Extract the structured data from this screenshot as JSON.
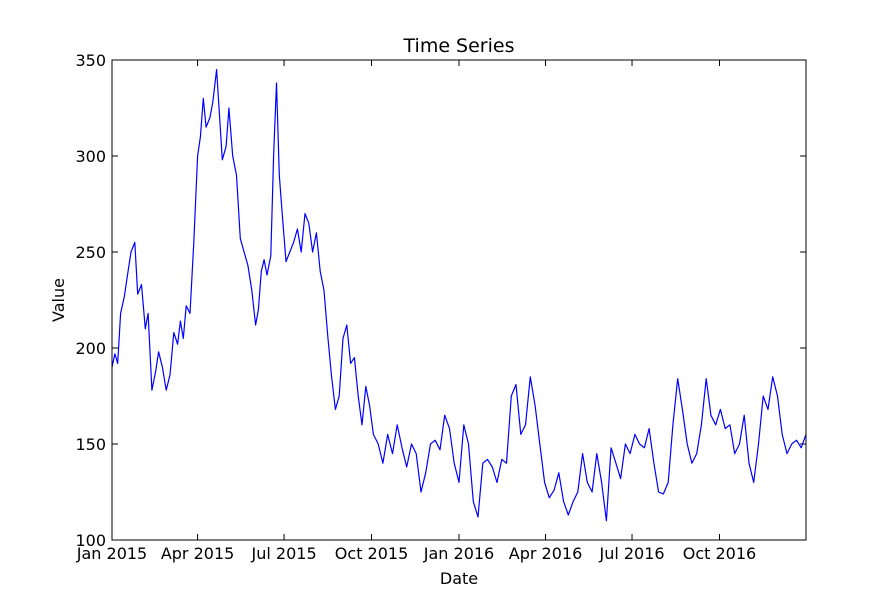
{
  "chart_data": {
    "type": "line",
    "title": "Time Series",
    "xlabel": "Date",
    "ylabel": "Value",
    "ylim": [
      100,
      350
    ],
    "xlim": [
      "2015-01-01",
      "2016-12-31"
    ],
    "yticks": [
      100,
      150,
      200,
      250,
      300,
      350
    ],
    "yticklabels": [
      "100",
      "150",
      "200",
      "250",
      "300",
      "350"
    ],
    "xticks": [
      "2015-01-01",
      "2015-04-01",
      "2015-07-01",
      "2015-10-01",
      "2016-01-01",
      "2016-04-01",
      "2016-07-01",
      "2016-10-01"
    ],
    "xticklabels": [
      "Jan 2015",
      "Apr 2015",
      "Jul 2015",
      "Oct 2015",
      "Jan 2016",
      "Apr 2016",
      "Jul 2016",
      "Oct 2016"
    ],
    "grid": false,
    "legend": false,
    "series": [
      {
        "color": "#0000ff",
        "x": [
          "2015-01-01",
          "2015-01-04",
          "2015-01-07",
          "2015-01-10",
          "2015-01-14",
          "2015-01-17",
          "2015-01-21",
          "2015-01-25",
          "2015-01-28",
          "2015-02-01",
          "2015-02-05",
          "2015-02-08",
          "2015-02-12",
          "2015-02-16",
          "2015-02-19",
          "2015-02-23",
          "2015-02-27",
          "2015-03-03",
          "2015-03-07",
          "2015-03-11",
          "2015-03-14",
          "2015-03-17",
          "2015-03-20",
          "2015-03-24",
          "2015-03-28",
          "2015-04-01",
          "2015-04-04",
          "2015-04-07",
          "2015-04-10",
          "2015-04-14",
          "2015-04-17",
          "2015-04-21",
          "2015-04-24",
          "2015-04-27",
          "2015-05-01",
          "2015-05-04",
          "2015-05-08",
          "2015-05-12",
          "2015-05-16",
          "2015-05-20",
          "2015-05-24",
          "2015-05-28",
          "2015-06-01",
          "2015-06-04",
          "2015-06-07",
          "2015-06-10",
          "2015-06-13",
          "2015-06-17",
          "2015-06-20",
          "2015-06-23",
          "2015-06-26",
          "2015-06-29",
          "2015-07-03",
          "2015-07-07",
          "2015-07-11",
          "2015-07-15",
          "2015-07-19",
          "2015-07-23",
          "2015-07-27",
          "2015-07-31",
          "2015-08-04",
          "2015-08-08",
          "2015-08-12",
          "2015-08-16",
          "2015-08-20",
          "2015-08-24",
          "2015-08-28",
          "2015-09-01",
          "2015-09-05",
          "2015-09-09",
          "2015-09-13",
          "2015-09-17",
          "2015-09-21",
          "2015-09-25",
          "2015-09-29",
          "2015-10-03",
          "2015-10-08",
          "2015-10-13",
          "2015-10-18",
          "2015-10-23",
          "2015-10-28",
          "2015-11-02",
          "2015-11-07",
          "2015-11-12",
          "2015-11-17",
          "2015-11-22",
          "2015-11-27",
          "2015-12-02",
          "2015-12-07",
          "2015-12-12",
          "2015-12-17",
          "2015-12-22",
          "2015-12-27",
          "2016-01-01",
          "2016-01-06",
          "2016-01-11",
          "2016-01-16",
          "2016-01-21",
          "2016-01-26",
          "2016-01-31",
          "2016-02-05",
          "2016-02-10",
          "2016-02-15",
          "2016-02-20",
          "2016-02-25",
          "2016-03-01",
          "2016-03-06",
          "2016-03-11",
          "2016-03-16",
          "2016-03-21",
          "2016-03-26",
          "2016-03-31",
          "2016-04-05",
          "2016-04-10",
          "2016-04-15",
          "2016-04-20",
          "2016-04-25",
          "2016-04-30",
          "2016-05-05",
          "2016-05-10",
          "2016-05-15",
          "2016-05-20",
          "2016-05-25",
          "2016-05-30",
          "2016-06-04",
          "2016-06-09",
          "2016-06-14",
          "2016-06-19",
          "2016-06-24",
          "2016-06-29",
          "2016-07-04",
          "2016-07-09",
          "2016-07-14",
          "2016-07-19",
          "2016-07-24",
          "2016-07-29",
          "2016-08-03",
          "2016-08-08",
          "2016-08-13",
          "2016-08-18",
          "2016-08-23",
          "2016-08-28",
          "2016-09-02",
          "2016-09-07",
          "2016-09-12",
          "2016-09-17",
          "2016-09-22",
          "2016-09-27",
          "2016-10-02",
          "2016-10-07",
          "2016-10-12",
          "2016-10-17",
          "2016-10-22",
          "2016-10-27",
          "2016-11-01",
          "2016-11-06",
          "2016-11-11",
          "2016-11-16",
          "2016-11-21",
          "2016-11-26",
          "2016-12-01",
          "2016-12-06",
          "2016-12-11",
          "2016-12-16",
          "2016-12-21",
          "2016-12-26",
          "2016-12-31"
        ],
        "y": [
          190,
          197,
          192,
          218,
          227,
          237,
          250,
          255,
          228,
          233,
          210,
          218,
          178,
          188,
          198,
          190,
          178,
          186,
          208,
          202,
          214,
          205,
          222,
          218,
          255,
          300,
          310,
          330,
          315,
          320,
          328,
          345,
          322,
          298,
          305,
          325,
          300,
          290,
          257,
          250,
          243,
          230,
          212,
          220,
          240,
          246,
          238,
          248,
          300,
          338,
          290,
          270,
          245,
          250,
          255,
          262,
          250,
          270,
          265,
          250,
          260,
          240,
          230,
          206,
          185,
          168,
          175,
          205,
          212,
          192,
          195,
          175,
          160,
          180,
          170,
          155,
          150,
          140,
          155,
          145,
          160,
          148,
          138,
          150,
          145,
          125,
          135,
          150,
          152,
          147,
          165,
          158,
          140,
          130,
          160,
          150,
          120,
          112,
          140,
          142,
          138,
          130,
          142,
          140,
          175,
          181,
          155,
          160,
          185,
          170,
          150,
          130,
          122,
          126,
          135,
          120,
          113,
          120,
          125,
          145,
          130,
          125,
          145,
          130,
          110,
          148,
          140,
          132,
          150,
          145,
          155,
          150,
          148,
          158,
          140,
          125,
          124,
          130,
          160,
          184,
          168,
          150,
          140,
          145,
          160,
          184,
          165,
          160,
          168,
          158,
          160,
          145,
          150,
          165,
          140,
          130,
          150,
          175,
          168,
          185,
          175,
          155,
          145,
          150,
          152,
          148,
          155
        ]
      }
    ]
  }
}
